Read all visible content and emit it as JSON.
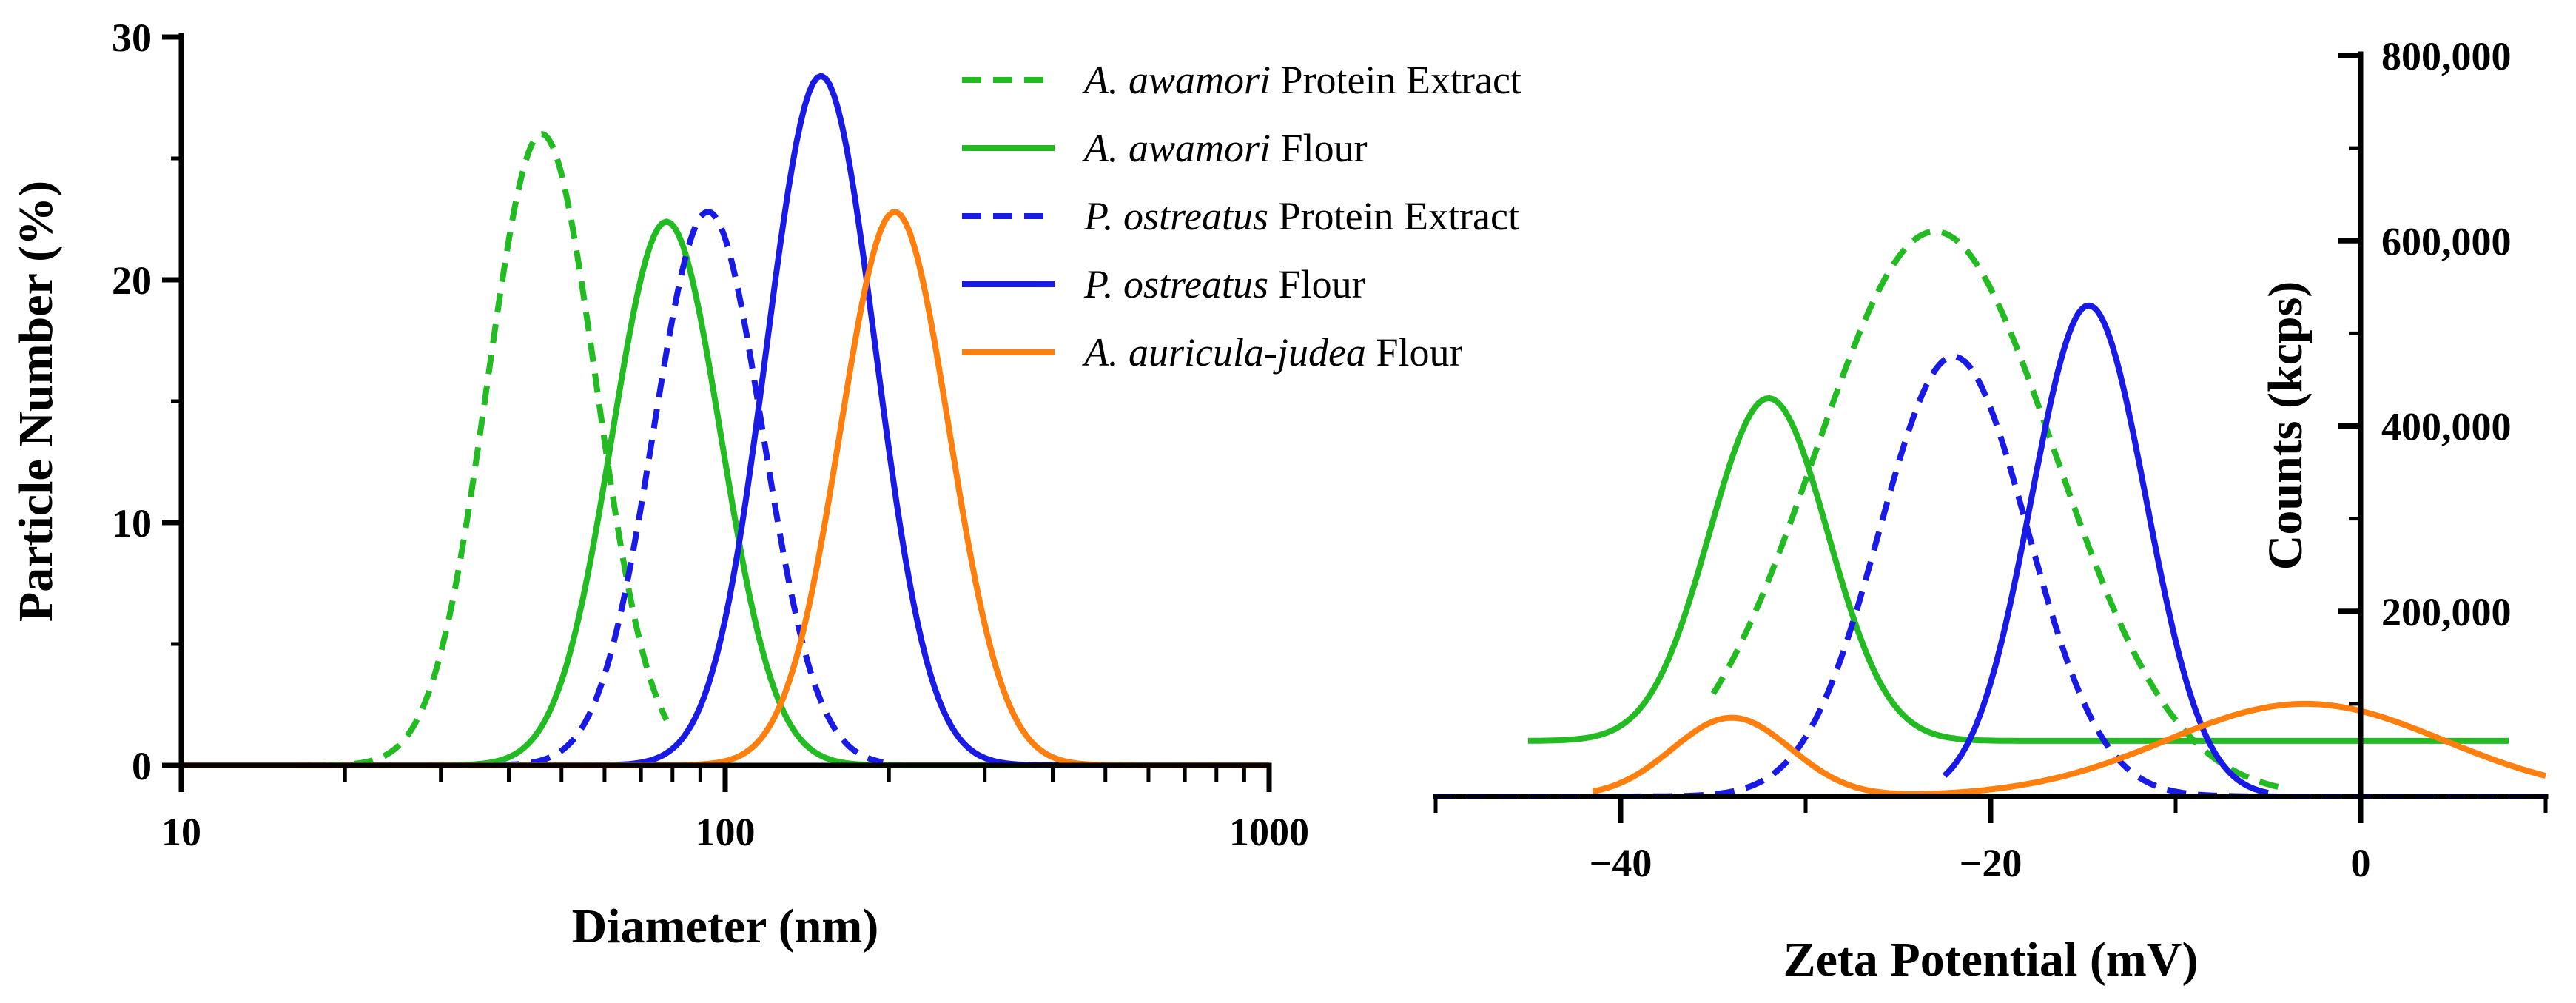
{
  "chart_data": [
    {
      "type": "line",
      "title": "",
      "xlabel": "Diameter (nm)",
      "ylabel": "Particle Number (%)",
      "xscale": "log",
      "xlim": [
        10,
        1000
      ],
      "ylim": [
        0,
        30
      ],
      "xticks": [
        "10",
        "100",
        "1000"
      ],
      "yticks": [
        "0",
        "10",
        "20",
        "30"
      ],
      "legend_position": "top-right",
      "series": [
        {
          "name": "A. awamori Protein Extract",
          "name_italic": "A. awamori",
          "name_rest": " Protein Extract",
          "color": "#22bb22",
          "dash": "dashed",
          "peak_x": 46,
          "peak_y": 26,
          "x_start": 14,
          "x_end": 78
        },
        {
          "name": "A. awamori Flour",
          "name_italic": "A. awamori",
          "name_rest": " Flour",
          "color": "#22bb22",
          "dash": "solid",
          "peak_x": 78,
          "peak_y": 22.4,
          "x_start": 10,
          "x_end": 1000
        },
        {
          "name": "P. ostreatus Protein Extract",
          "name_italic": "P. ostreatus",
          "name_rest": " Protein Extract",
          "color": "#1a1ae6",
          "dash": "dashed",
          "peak_x": 93,
          "peak_y": 22.8,
          "x_start": 20,
          "x_end": 195
        },
        {
          "name": "P. ostreatus Flour",
          "name_italic": "P. ostreatus",
          "name_rest": " Flour",
          "color": "#1a1ae6",
          "dash": "solid",
          "peak_x": 150,
          "peak_y": 28.4,
          "x_start": 10,
          "x_end": 1000
        },
        {
          "name": "A. auricula-judea Flour",
          "name_italic": "A. auricula-judea",
          "name_rest": " Flour",
          "color": "#ff7f0e",
          "dash": "solid",
          "peak_x": 205,
          "peak_y": 22.8,
          "x_start": 10,
          "x_end": 1000
        }
      ]
    },
    {
      "type": "line",
      "title": "",
      "xlabel": "Zeta Potential (mV)",
      "ylabel": "Counts (kcps)",
      "xlim": [
        -50,
        10
      ],
      "ylim": [
        0,
        800000
      ],
      "xticks": [
        "−40",
        "−20",
        "0"
      ],
      "yticks": [
        "200,000",
        "400,000",
        "600,000",
        "800,000"
      ],
      "y_axis_side": "right",
      "series": [
        {
          "name": "A. awamori Protein Extract",
          "color": "#22bb22",
          "dash": "dashed",
          "peak_x": -23,
          "peak_y": 610000,
          "sigma": 6.5,
          "baseline": 0,
          "x_start": -35,
          "x_end": -4
        },
        {
          "name": "A. awamori Flour",
          "color": "#22bb22",
          "dash": "solid",
          "peak_x": -32,
          "peak_y": 430000,
          "sigma": 3.2,
          "baseline": 60000,
          "x_start": -45,
          "x_end": 8
        },
        {
          "name": "P. ostreatus Protein Extract",
          "color": "#1a1ae6",
          "dash": "dashed",
          "peak_x": -22,
          "peak_y": 475000,
          "sigma": 4.0,
          "baseline": 0,
          "x_start": -50,
          "x_end": 10
        },
        {
          "name": "P. ostreatus Flour",
          "color": "#1a1ae6",
          "dash": "solid",
          "peak_x": -14.7,
          "peak_y": 530000,
          "sigma": 3.1,
          "baseline": 0,
          "x_start": -22.5,
          "x_end": -5
        },
        {
          "name": "A. auricula-judea Flour",
          "color": "#ff7f0e",
          "dash": "solid",
          "peaks": [
            [
              -34,
              85000,
              3.2
            ],
            [
              -3,
              100000,
              7.5
            ]
          ],
          "baseline": 0,
          "x_start": -41.5,
          "x_end": 10
        }
      ]
    }
  ]
}
